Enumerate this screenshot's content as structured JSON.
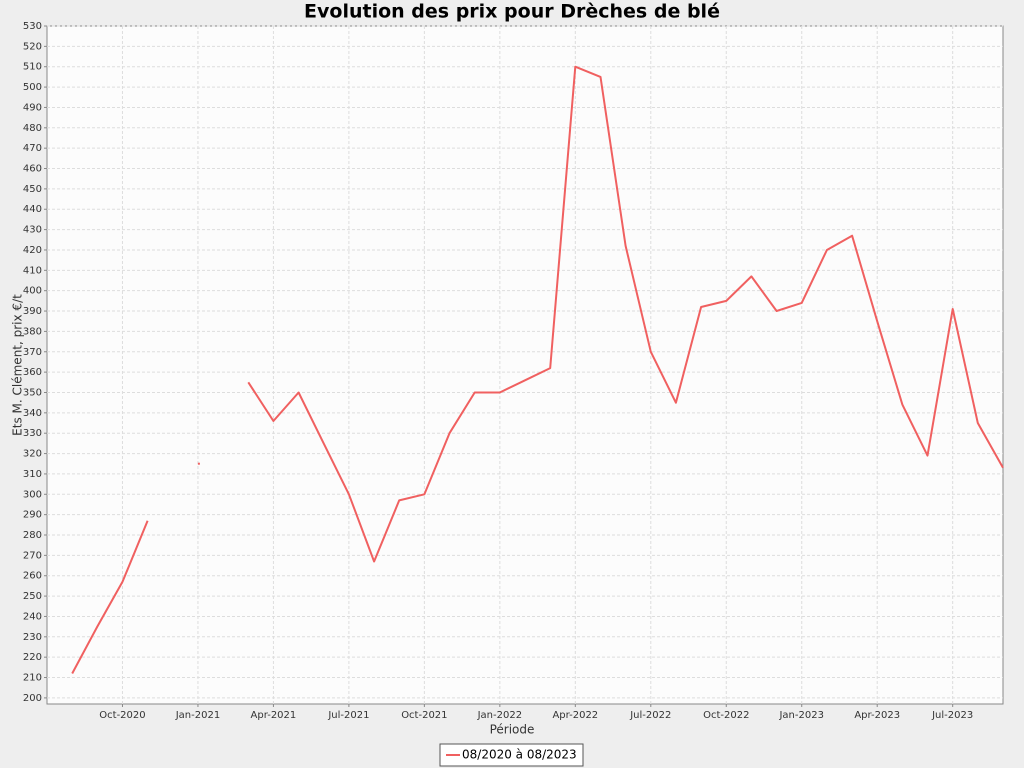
{
  "chart_data": {
    "type": "line",
    "title": "Evolution des prix pour Drèches de blé",
    "x_label": "Période",
    "y_label": "Ets M. Clément, prix €/t",
    "x": [
      "2020-08",
      "2020-09",
      "2020-10",
      "2020-11",
      "2020-12",
      "2021-01",
      "2021-02",
      "2021-03",
      "2021-04",
      "2021-05",
      "2021-06",
      "2021-07",
      "2021-08",
      "2021-09",
      "2021-10",
      "2021-11",
      "2021-12",
      "2022-01",
      "2022-02",
      "2022-03",
      "2022-04",
      "2022-05",
      "2022-06",
      "2022-07",
      "2022-08",
      "2022-09",
      "2022-10",
      "2022-11",
      "2022-12",
      "2023-01",
      "2023-02",
      "2023-03",
      "2023-04",
      "2023-05",
      "2023-06",
      "2023-07",
      "2023-08",
      "2023-09"
    ],
    "series": [
      {
        "name": "08/2020 à 08/2023",
        "color": "#f06060",
        "values": [
          212,
          235,
          257,
          287,
          null,
          315,
          null,
          355,
          336,
          350,
          325,
          300,
          267,
          297,
          300,
          330,
          350,
          350,
          356,
          362,
          510,
          505,
          422,
          370,
          345,
          392,
          395,
          407,
          390,
          394,
          420,
          427,
          385,
          344,
          319,
          391,
          335,
          313
        ]
      }
    ],
    "xlim": [
      "2020-07",
      "2023-09"
    ],
    "xticks": [
      {
        "value": "2020-10",
        "label": "Oct-2020"
      },
      {
        "value": "2021-01",
        "label": "Jan-2021"
      },
      {
        "value": "2021-04",
        "label": "Apr-2021"
      },
      {
        "value": "2021-07",
        "label": "Jul-2021"
      },
      {
        "value": "2021-10",
        "label": "Oct-2021"
      },
      {
        "value": "2022-01",
        "label": "Jan-2022"
      },
      {
        "value": "2022-04",
        "label": "Apr-2022"
      },
      {
        "value": "2022-07",
        "label": "Jul-2022"
      },
      {
        "value": "2022-10",
        "label": "Oct-2022"
      },
      {
        "value": "2023-01",
        "label": "Jan-2023"
      },
      {
        "value": "2023-04",
        "label": "Apr-2023"
      },
      {
        "value": "2023-07",
        "label": "Jul-2023"
      }
    ],
    "ylim": [
      197,
      530
    ],
    "yticks": [
      200,
      210,
      220,
      230,
      240,
      250,
      260,
      270,
      280,
      290,
      300,
      310,
      320,
      330,
      340,
      350,
      360,
      370,
      380,
      390,
      400,
      410,
      420,
      430,
      440,
      450,
      460,
      470,
      480,
      490,
      500,
      510,
      520,
      530
    ],
    "grid": true,
    "legend": "bottom"
  }
}
